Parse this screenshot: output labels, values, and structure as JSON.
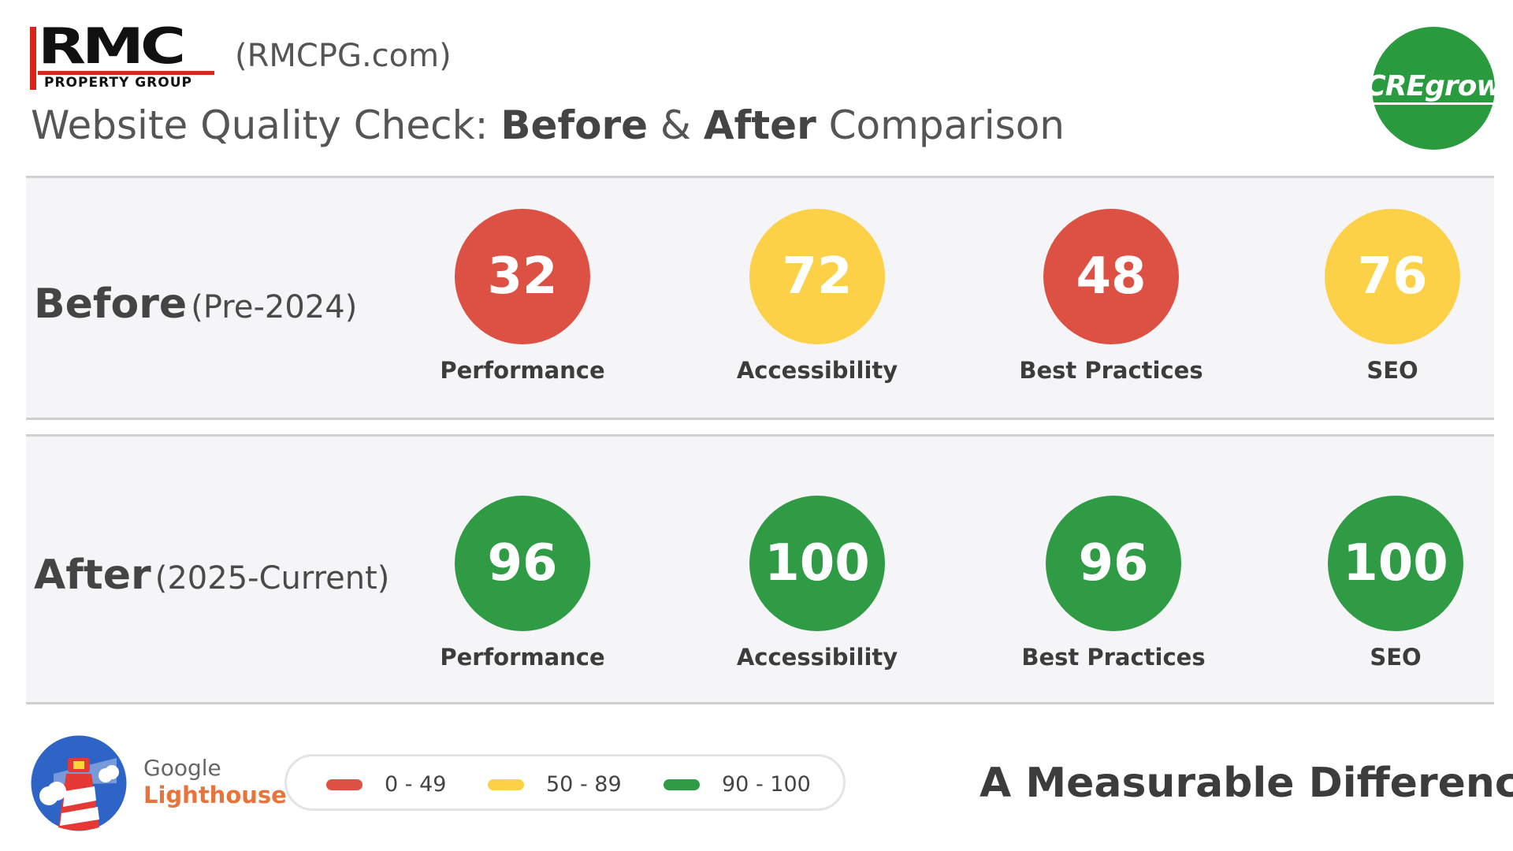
{
  "header": {
    "logo_mark": "RMC",
    "logo_sub": "PROPERTY GROUP",
    "domain": "(RMCPG.com)",
    "title_prefix": "Website Quality Check: ",
    "title_before": "Before",
    "title_amp": " & ",
    "title_after": "After",
    "title_suffix": " Comparison",
    "cregrow_logo": "CREgrow"
  },
  "colors": {
    "red": "#dc5144",
    "yellow": "#fcd147",
    "green": "#2f9b45",
    "cregrow_green": "#2a9a3f",
    "lighthouse_orange": "#e8743b"
  },
  "before": {
    "label": "Before",
    "period": "(Pre-2024)",
    "metrics": [
      {
        "value": "32",
        "label": "Performance",
        "color": "red"
      },
      {
        "value": "72",
        "label": "Accessibility",
        "color": "yellow"
      },
      {
        "value": "48",
        "label": "Best Practices",
        "color": "red"
      },
      {
        "value": "76",
        "label": "SEO",
        "color": "yellow"
      }
    ]
  },
  "after": {
    "label": "After",
    "period": "(2025-Current)",
    "metrics": [
      {
        "value": "96",
        "label": "Performance",
        "color": "green"
      },
      {
        "value": "100",
        "label": "Accessibility",
        "color": "green"
      },
      {
        "value": "96",
        "label": "Best Practices",
        "color": "green"
      },
      {
        "value": "100",
        "label": "SEO",
        "color": "green"
      }
    ]
  },
  "footer": {
    "lighthouse_google": "Google",
    "lighthouse_name": "Lighthouse",
    "lighthouse_icon": "lighthouse-icon",
    "legend": [
      {
        "range": "0 - 49",
        "color": "red"
      },
      {
        "range": "50 - 89",
        "color": "yellow"
      },
      {
        "range": "90 - 100",
        "color": "green"
      }
    ],
    "tagline": "A Measurable Difference."
  }
}
